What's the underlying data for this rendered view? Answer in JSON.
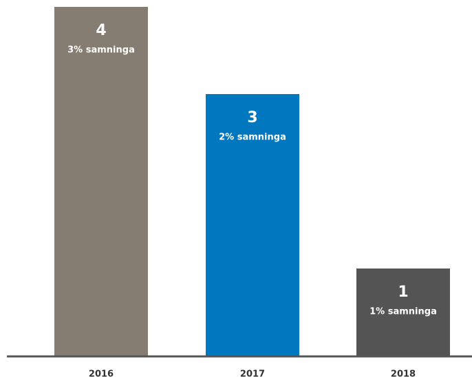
{
  "chart_data": {
    "type": "bar",
    "categories": [
      "2016",
      "2017",
      "2018"
    ],
    "values": [
      4,
      3,
      1
    ],
    "annotations": [
      "3% samninga",
      "2% samninga",
      "1% samninga"
    ],
    "colors": [
      "#857d72",
      "#0077bf",
      "#545454"
    ],
    "ylim": [
      0,
      4
    ]
  }
}
